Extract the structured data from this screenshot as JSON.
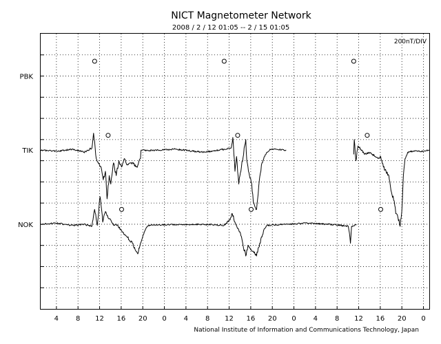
{
  "chart_data": {
    "type": "line",
    "title": "NICT Magnetometer Network",
    "subtitle": "2008 / 2 / 12  01:05 --  2 / 15  01:05",
    "scale_label": "200nT/DIV",
    "credit": "National Institute of Information and Communications Technology, Japan",
    "x_unit_hours": 72,
    "xticks": [
      {
        "h": 2.92,
        "label": "4"
      },
      {
        "h": 6.92,
        "label": "8"
      },
      {
        "h": 10.92,
        "label": "12"
      },
      {
        "h": 14.92,
        "label": "16"
      },
      {
        "h": 18.92,
        "label": "20"
      },
      {
        "h": 22.92,
        "label": "0"
      },
      {
        "h": 26.92,
        "label": "4"
      },
      {
        "h": 30.92,
        "label": "8"
      },
      {
        "h": 34.92,
        "label": "12"
      },
      {
        "h": 38.92,
        "label": "16"
      },
      {
        "h": 42.92,
        "label": "20"
      },
      {
        "h": 46.92,
        "label": "0"
      },
      {
        "h": 50.92,
        "label": "4"
      },
      {
        "h": 54.92,
        "label": "8"
      },
      {
        "h": 58.92,
        "label": "12"
      },
      {
        "h": 62.92,
        "label": "16"
      },
      {
        "h": 66.92,
        "label": "20"
      },
      {
        "h": 70.92,
        "label": "0"
      }
    ],
    "y_divisions": 13,
    "stations": [
      {
        "name": "PBK",
        "baseline_div": 2.0,
        "markers_h": [
          10.0,
          34.0,
          58.0
        ],
        "marker_offset_div": 0.7,
        "segments": []
      },
      {
        "name": "TIK",
        "baseline_div": 5.5,
        "markers_h": [
          12.5,
          36.5,
          60.5
        ],
        "marker_offset_div": 0.7,
        "segments": [
          [
            [
              0,
              0
            ],
            [
              3,
              0.05
            ],
            [
              6,
              -0.05
            ],
            [
              8,
              0.1
            ],
            [
              9.5,
              -0.1
            ],
            [
              9.8,
              -0.8
            ],
            [
              10.3,
              0.4
            ],
            [
              11.2,
              0.8
            ],
            [
              11.6,
              1.4
            ],
            [
              12.0,
              1.0
            ],
            [
              12.3,
              2.3
            ],
            [
              12.7,
              1.2
            ],
            [
              13,
              1.6
            ],
            [
              13.5,
              0.6
            ],
            [
              14,
              1.2
            ],
            [
              14.5,
              0.5
            ],
            [
              15,
              0.8
            ],
            [
              15.5,
              0.4
            ],
            [
              16,
              0.7
            ],
            [
              17,
              0.6
            ],
            [
              17.8,
              0.8
            ],
            [
              18.5,
              0.4
            ],
            [
              18.6,
              0
            ],
            [
              20,
              0.02
            ],
            [
              25,
              -0.05
            ],
            [
              30,
              0.1
            ],
            [
              33,
              0
            ],
            [
              35.3,
              -0.1
            ],
            [
              35.6,
              -0.6
            ],
            [
              36,
              1.0
            ],
            [
              36.3,
              0.3
            ],
            [
              36.7,
              1.6
            ],
            [
              37.2,
              0.8
            ],
            [
              38,
              -0.5
            ],
            [
              38.2,
              0.5
            ],
            [
              38.5,
              1.0
            ],
            [
              39,
              1.5
            ],
            [
              39.5,
              2.5
            ],
            [
              40,
              2.8
            ],
            [
              40.4,
              1.7
            ],
            [
              40.7,
              1.1
            ],
            [
              41,
              0.6
            ],
            [
              41.5,
              0.3
            ],
            [
              42,
              0.1
            ],
            [
              42.5,
              -0.05
            ],
            [
              45.5,
              0
            ]
          ],
          [
            [
              58.0,
              0.2
            ],
            [
              58.1,
              -0.5
            ],
            [
              58.4,
              0.5
            ],
            [
              58.8,
              -0.2
            ],
            [
              59.5,
              0
            ],
            [
              60.0,
              0.2
            ],
            [
              61,
              0.1
            ],
            [
              62,
              0.3
            ],
            [
              62.5,
              0.4
            ],
            [
              63,
              0.3
            ],
            [
              63.5,
              0.8
            ],
            [
              64.5,
              1.2
            ],
            [
              65.0,
              2.0
            ],
            [
              65.5,
              2.4
            ],
            [
              65.8,
              3.0
            ],
            [
              66.2,
              3.2
            ],
            [
              66.6,
              3.6
            ],
            [
              66.9,
              2.9
            ],
            [
              67.2,
              1.2
            ],
            [
              67.5,
              0.4
            ],
            [
              68,
              0.1
            ],
            [
              69,
              0.05
            ],
            [
              71,
              0.05
            ],
            [
              72,
              0
            ]
          ]
        ]
      },
      {
        "name": "NOK",
        "baseline_div": 9.0,
        "markers_h": [
          15.0,
          39.0,
          63.0
        ],
        "marker_offset_div": 0.7,
        "segments": [
          [
            [
              0,
              0
            ],
            [
              3,
              -0.05
            ],
            [
              6,
              0.05
            ],
            [
              8,
              0
            ],
            [
              9.5,
              0.1
            ],
            [
              10.0,
              -0.7
            ],
            [
              10.5,
              0.05
            ],
            [
              11.0,
              -1.3
            ],
            [
              11.5,
              -0.1
            ],
            [
              12.0,
              -0.6
            ],
            [
              12.5,
              -0.3
            ],
            [
              13.0,
              -0.2
            ],
            [
              13.5,
              0.05
            ],
            [
              14,
              0
            ],
            [
              15,
              0.3
            ],
            [
              16,
              0.6
            ],
            [
              17,
              0.9
            ],
            [
              17.5,
              1.2
            ],
            [
              18,
              1.4
            ],
            [
              18.5,
              0.9
            ],
            [
              19,
              0.5
            ],
            [
              19.5,
              0.2
            ],
            [
              20,
              0.05
            ],
            [
              23,
              0.02
            ],
            [
              30,
              0
            ],
            [
              34,
              0.05
            ],
            [
              35,
              -0.2
            ],
            [
              35.5,
              -0.5
            ],
            [
              36,
              -0.1
            ],
            [
              36.5,
              0.2
            ],
            [
              37,
              0.4
            ],
            [
              37.5,
              1.0
            ],
            [
              38,
              1.5
            ],
            [
              38.5,
              1.0
            ],
            [
              39,
              1.2
            ],
            [
              40,
              1.5
            ],
            [
              41,
              0.6
            ],
            [
              41.5,
              0.2
            ],
            [
              42,
              0.05
            ],
            [
              45,
              0
            ],
            [
              50,
              -0.05
            ],
            [
              55,
              0.03
            ],
            [
              57,
              0.1
            ],
            [
              57.4,
              0.9
            ],
            [
              57.6,
              0.1
            ],
            [
              58.5,
              0
            ]
          ]
        ]
      }
    ]
  }
}
